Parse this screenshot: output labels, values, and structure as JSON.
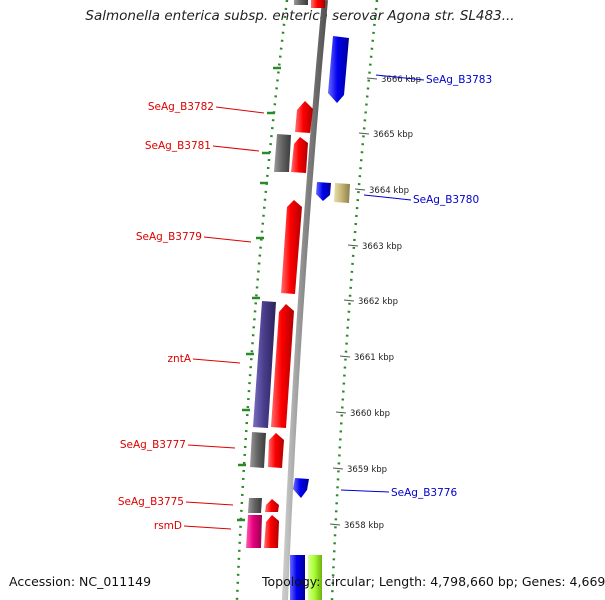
{
  "title": "Salmonella enterica subsp. enterica serovar Agona str. SL483...",
  "footer": {
    "accession": "Accession: NC_011149",
    "topology": "Topology: circular; Length: 4,798,660 bp; Genes: 4,669"
  },
  "colors": {
    "forward_cds": "#ff0000",
    "reverse_cds": "#0000ee",
    "gray_feature": "#666666",
    "purple_feature": "#4b3f8f",
    "magenta_feature": "#e6007e",
    "khaki_feature": "#c8b878",
    "lime_feature": "#aaff33",
    "backbone": "#888888",
    "gc_dots": "#2a8a2a",
    "label_red": "#dd0000",
    "label_blue": "#0000cc"
  },
  "ticks": [
    "3666 kbp",
    "3665 kbp",
    "3664 kbp",
    "3663 kbp",
    "3662 kbp",
    "3661 kbp",
    "3660 kbp",
    "3659 kbp",
    "3658 kbp"
  ],
  "labels": [
    {
      "text": "SeAg_B3783",
      "side": "right"
    },
    {
      "text": "SeAg_B3782",
      "side": "left"
    },
    {
      "text": "SeAg_B3781",
      "side": "left"
    },
    {
      "text": "SeAg_B3780",
      "side": "right"
    },
    {
      "text": "SeAg_B3779",
      "side": "left"
    },
    {
      "text": "zntA",
      "side": "left"
    },
    {
      "text": "SeAg_B3777",
      "side": "left"
    },
    {
      "text": "SeAg_B3776",
      "side": "right"
    },
    {
      "text": "SeAg_B3775",
      "side": "left"
    },
    {
      "text": "rsmD",
      "side": "left"
    }
  ]
}
